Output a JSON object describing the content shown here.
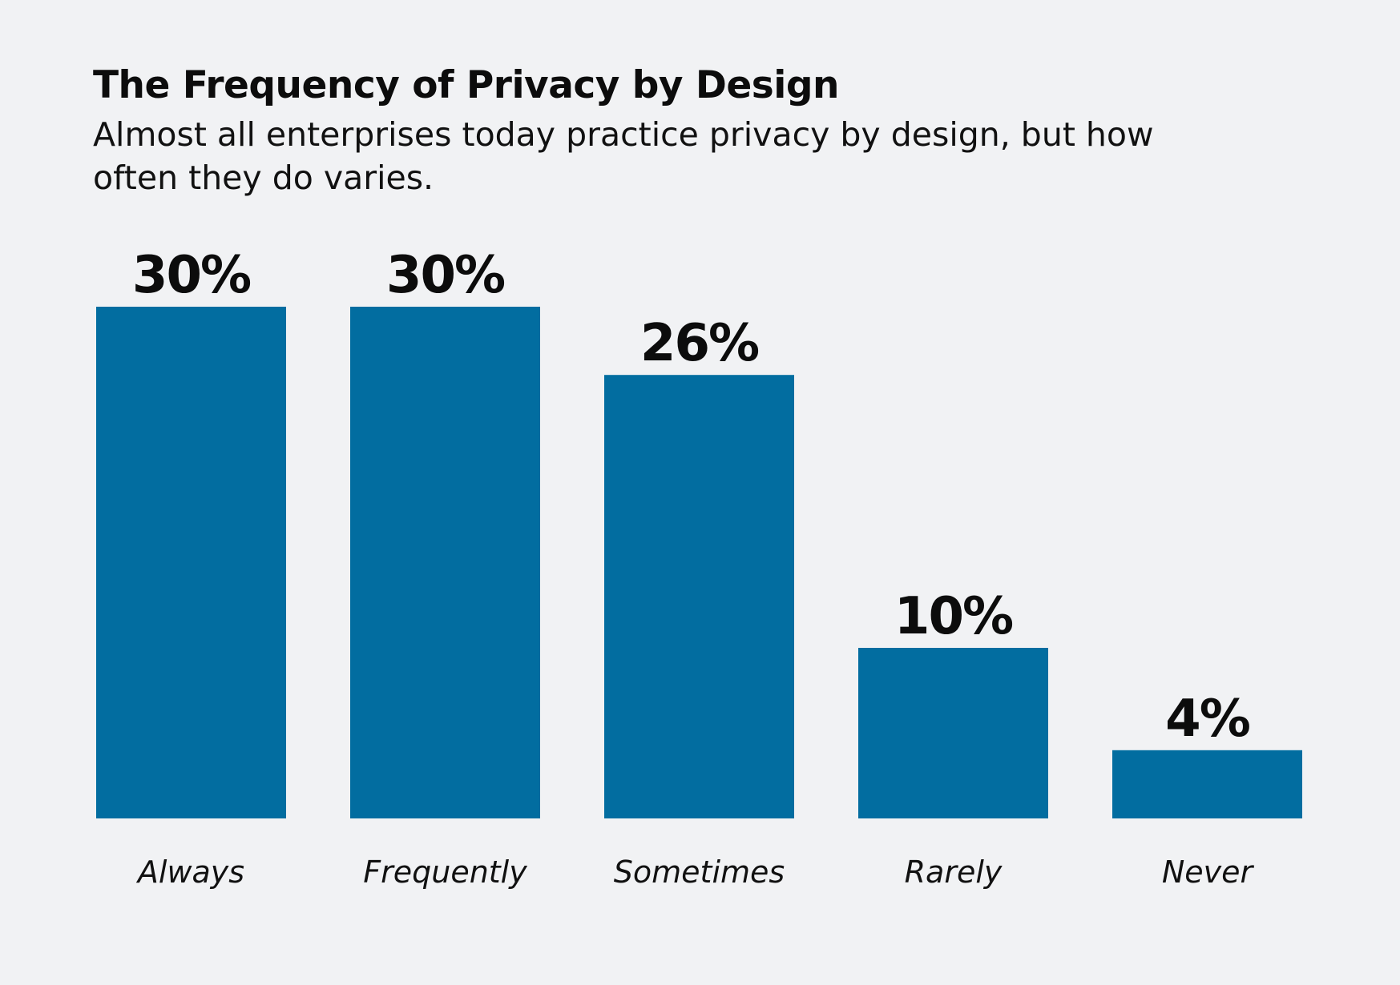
{
  "header": {
    "title": "The Frequency of Privacy by Design",
    "subtitle": "Almost all enterprises today practice privacy by design, but how often they do varies."
  },
  "colors": {
    "background": "#f1f2f4",
    "bar": "#026da0",
    "text": "#0c0c0c"
  },
  "chart_data": {
    "type": "bar",
    "title": "The Frequency of Privacy by Design",
    "subtitle": "Almost all enterprises today practice privacy by design, but how often they do varies.",
    "categories": [
      "Always",
      "Frequently",
      "Sometimes",
      "Rarely",
      "Never"
    ],
    "values": [
      30,
      30,
      26,
      10,
      4
    ],
    "value_labels": [
      "30%",
      "30%",
      "26%",
      "10%",
      "4%"
    ],
    "unit": "%",
    "ylim": [
      0,
      30
    ],
    "grid": false,
    "legend": "none",
    "bar_color": "#026da0"
  }
}
